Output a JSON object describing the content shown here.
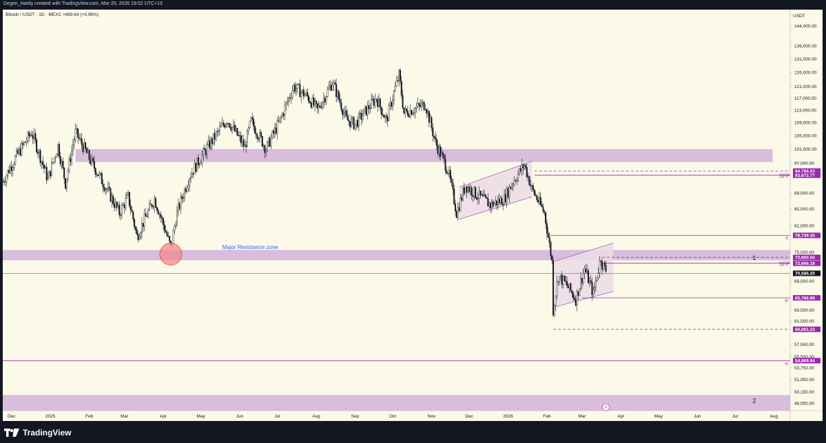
{
  "header": {
    "attribution": "Degen_Hardy created with TradingView.com, Mar 20, 2026 19:02 UTC+13"
  },
  "legend": {
    "text": "Bitcoin / USDT · 1D · MEXC  +669.64 (+0.96%)"
  },
  "footer": {
    "brand": "TradingView"
  },
  "chart_data": {
    "type": "candlestick",
    "symbol": "Bitcoin / USDT",
    "interval": "1D",
    "exchange": "MEXC",
    "change": "+669.64 (+0.96%)",
    "currency": "USDT",
    "y_axis": {
      "scale": "log",
      "range": [
        47500,
        151000
      ],
      "ticks": [
        144000,
        136000,
        131000,
        126000,
        121000,
        117000,
        113000,
        109000,
        105000,
        101000,
        97000,
        89000,
        85000,
        81000,
        75000,
        69000,
        63500,
        61500,
        57500,
        55500,
        53750,
        51950,
        50150,
        48550
      ],
      "tick_labels": [
        "144,000.00",
        "136,000.00",
        "131,000.00",
        "126,000.00",
        "121,000.00",
        "117,000.00",
        "113,000.00",
        "109,000.00",
        "105,000.00",
        "101,000.00",
        "97,000.00",
        "89,000.00",
        "85,000.00",
        "81,000.00",
        "75,000.00",
        "69,000.00",
        "63,500.00",
        "61,500.00",
        "57,500.00",
        "55,500.00",
        "53,750.00",
        "51,950.00",
        "50,150.00",
        "48,550.00"
      ]
    },
    "x_axis": {
      "range": [
        "2024-11-24",
        "2026-08-14"
      ],
      "ticks": [
        {
          "label": "Dec",
          "date": "2024-12-01"
        },
        {
          "label": "2025",
          "date": "2025-01-01"
        },
        {
          "label": "Feb",
          "date": "2025-02-01"
        },
        {
          "label": "Mar",
          "date": "2025-03-01"
        },
        {
          "label": "Apr",
          "date": "2025-04-01"
        },
        {
          "label": "May",
          "date": "2025-05-01"
        },
        {
          "label": "Jun",
          "date": "2025-06-01"
        },
        {
          "label": "Jul",
          "date": "2025-07-01"
        },
        {
          "label": "Aug",
          "date": "2025-08-01"
        },
        {
          "label": "Sep",
          "date": "2025-09-01"
        },
        {
          "label": "Oct",
          "date": "2025-10-01"
        },
        {
          "label": "Nov",
          "date": "2025-11-01"
        },
        {
          "label": "Dec",
          "date": "2025-12-01"
        },
        {
          "label": "2026",
          "date": "2026-01-01"
        },
        {
          "label": "Feb",
          "date": "2026-02-01"
        },
        {
          "label": "Mar",
          "date": "2026-03-01"
        },
        {
          "label": "Apr",
          "date": "2026-04-01"
        },
        {
          "label": "May",
          "date": "2026-05-01"
        },
        {
          "label": "Jun",
          "date": "2026-06-01"
        },
        {
          "label": "Jul",
          "date": "2026-07-01"
        },
        {
          "label": "Aug",
          "date": "2026-08-01"
        }
      ]
    },
    "price_anchors": [
      [
        "2024-11-24",
        92000
      ],
      [
        "2024-12-05",
        99000
      ],
      [
        "2024-12-17",
        106000
      ],
      [
        "2024-12-30",
        92500
      ],
      [
        "2025-01-07",
        102000
      ],
      [
        "2025-01-13",
        91500
      ],
      [
        "2025-01-21",
        106000
      ],
      [
        "2025-02-03",
        97000
      ],
      [
        "2025-02-25",
        84000
      ],
      [
        "2025-03-04",
        88000
      ],
      [
        "2025-03-11",
        78500
      ],
      [
        "2025-03-25",
        87500
      ],
      [
        "2025-04-07",
        76000
      ],
      [
        "2025-04-12",
        84000
      ],
      [
        "2025-04-22",
        93500
      ],
      [
        "2025-05-10",
        103500
      ],
      [
        "2025-05-22",
        110000
      ],
      [
        "2025-06-05",
        101500
      ],
      [
        "2025-06-10",
        109500
      ],
      [
        "2025-06-22",
        101000
      ],
      [
        "2025-07-03",
        109500
      ],
      [
        "2025-07-14",
        121000
      ],
      [
        "2025-07-25",
        117500
      ],
      [
        "2025-08-02",
        113000
      ],
      [
        "2025-08-14",
        122500
      ],
      [
        "2025-08-25",
        110000
      ],
      [
        "2025-09-01",
        108500
      ],
      [
        "2025-09-18",
        117000
      ],
      [
        "2025-09-26",
        109500
      ],
      [
        "2025-10-06",
        125000
      ],
      [
        "2025-10-10",
        112000
      ],
      [
        "2025-10-27",
        115000
      ],
      [
        "2025-11-04",
        103000
      ],
      [
        "2025-11-14",
        95000
      ],
      [
        "2025-11-21",
        84000
      ],
      [
        "2025-11-28",
        91000
      ],
      [
        "2025-12-07",
        88500
      ],
      [
        "2025-12-18",
        86000
      ],
      [
        "2025-12-29",
        87500
      ],
      [
        "2026-01-05",
        92000
      ],
      [
        "2026-01-14",
        96500
      ],
      [
        "2026-01-20",
        90000
      ],
      [
        "2026-01-30",
        84000
      ],
      [
        "2026-02-05",
        73000
      ],
      [
        "2026-02-06",
        63500
      ],
      [
        "2026-02-10",
        70000
      ],
      [
        "2026-02-16",
        68500
      ],
      [
        "2026-02-24",
        65500
      ],
      [
        "2026-03-03",
        71500
      ],
      [
        "2026-03-10",
        66500
      ],
      [
        "2026-03-16",
        74000
      ],
      [
        "2026-03-17",
        72500
      ],
      [
        "2026-03-20",
        71200
      ]
    ],
    "zones": [
      {
        "from": "2025-01-21",
        "to": "2026-07-31",
        "low": 97300,
        "high": 101000
      },
      {
        "from": "2024-11-24",
        "to": "2026-08-14",
        "low": 73300,
        "high": 75500
      },
      {
        "from": "2024-11-24",
        "to": "2026-08-14",
        "low": 47500,
        "high": 49700
      }
    ],
    "channels": [
      {
        "x1": "2025-11-23",
        "x2": "2026-01-20",
        "lower_start": 82500,
        "lower_end": 88000,
        "upper_start": 90500,
        "upper_end": 97500
      },
      {
        "x1": "2026-02-06",
        "x2": "2026-03-26",
        "lower_start": 64000,
        "lower_end": 67000,
        "upper_start": 73000,
        "upper_end": 77000
      }
    ],
    "levels": [
      {
        "price": 94788.63,
        "label": "94,788.63",
        "style": "dashed",
        "from": "2026-01-22"
      },
      {
        "price": 93672.77,
        "label": "93,672.77",
        "style": "solid",
        "from": "2026-01-22",
        "marker": "SFP"
      },
      {
        "price": 78739.35,
        "label": "78,739.35",
        "style": "solid",
        "from": "2026-02-03",
        "marker": "D"
      },
      {
        "price": 73900.0,
        "label": "73,900.00",
        "style": "dashed",
        "from": "2026-03-17"
      },
      {
        "price": 72666.18,
        "label": "72,666.18",
        "style": "solid",
        "from": "2026-03-17",
        "marker": "SFP"
      },
      {
        "price": 70586.2,
        "label": "70,586.20",
        "style": "current"
      },
      {
        "price": 65766.99,
        "label": "65,766.99",
        "style": "solid",
        "from": "2026-03-01",
        "marker": "W"
      },
      {
        "price": 60061.23,
        "label": "60,061.23",
        "style": "dashed",
        "from": "2026-02-06"
      },
      {
        "price": 54869.94,
        "label": "54,869.94",
        "style": "solid",
        "from": "2024-11-24",
        "marker": "W"
      }
    ],
    "annotations": [
      {
        "text": "Major Resistance zone",
        "date": "2025-05-18",
        "price": 75700
      },
      {
        "text": "1",
        "date": "2026-07-15",
        "price": 73900
      },
      {
        "text": "2",
        "date": "2026-07-15",
        "price": 49000
      },
      {
        "text": "SFP",
        "date": "2026-08-05",
        "price": 93672.77
      },
      {
        "text": "SFP",
        "date": "2026-08-05",
        "price": 72666.18
      }
    ],
    "circle_marker": {
      "date": "2025-04-07",
      "price": 74600
    }
  }
}
